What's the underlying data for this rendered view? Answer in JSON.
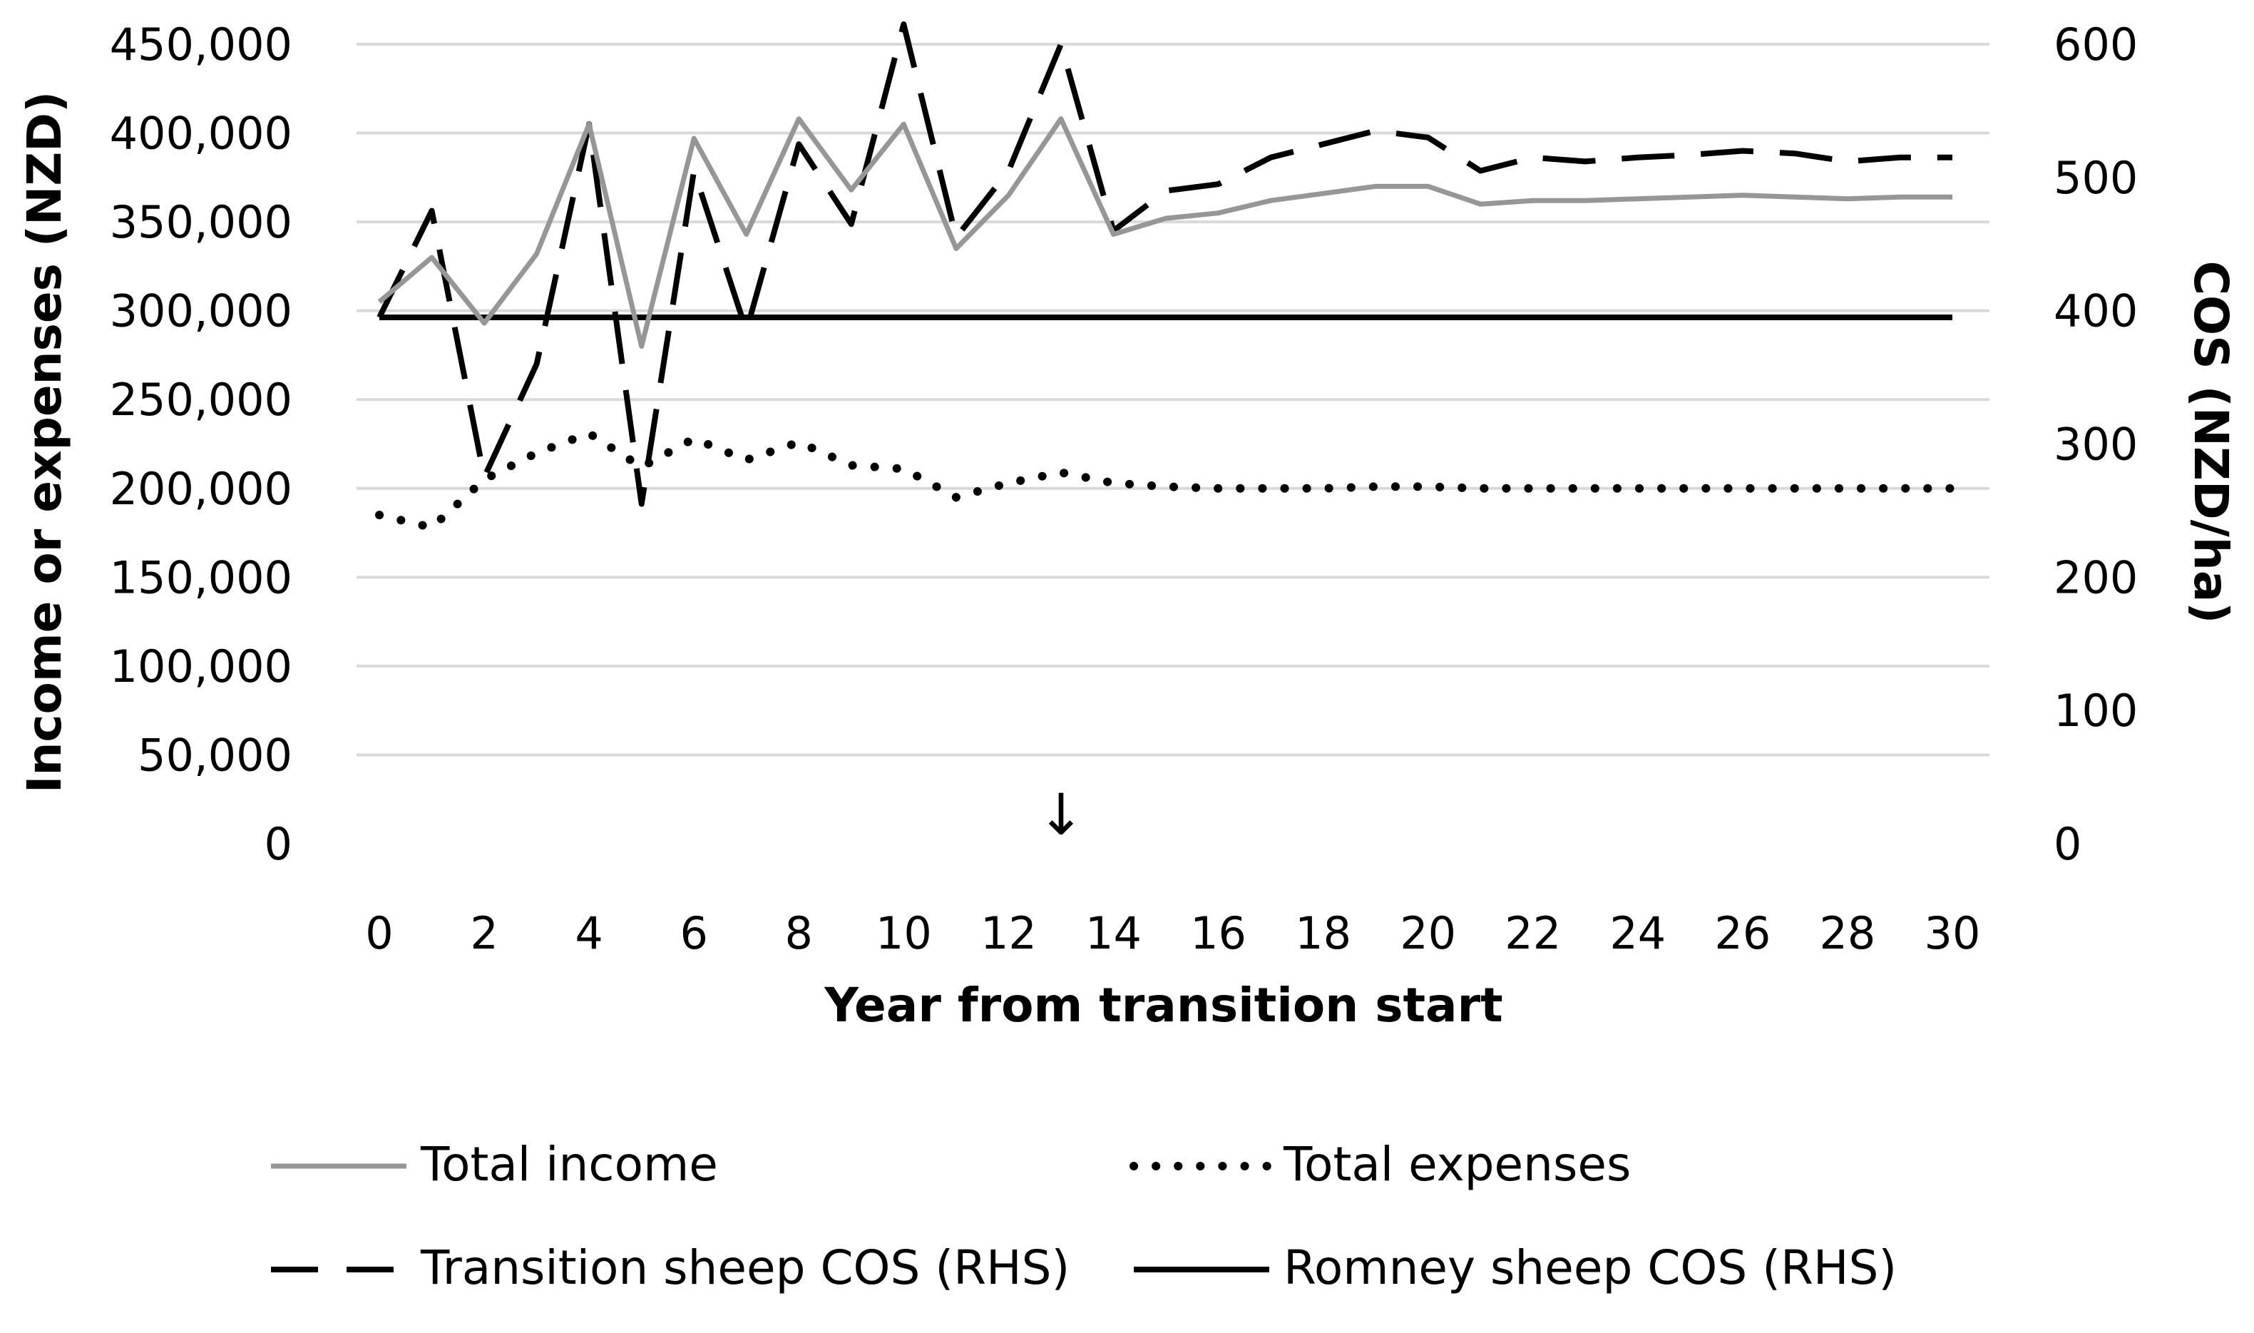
{
  "chart_data": {
    "type": "line",
    "title": "",
    "xlabel": "Year from transition start",
    "ylabel": "Income or expenses (NZD)",
    "y2label": "COS (NZD/ha)",
    "xlim": [
      0,
      30
    ],
    "ylim": [
      0,
      450000
    ],
    "y2lim": [
      0,
      600
    ],
    "grid": true,
    "legend_position": "bottom",
    "x_ticks": [
      "0",
      "2",
      "4",
      "6",
      "8",
      "10",
      "12",
      "14",
      "16",
      "18",
      "20",
      "22",
      "24",
      "26",
      "28",
      "30"
    ],
    "y_ticks": [
      "0",
      "50,000",
      "100,000",
      "150,000",
      "200,000",
      "250,000",
      "300,000",
      "350,000",
      "400,000",
      "450,000"
    ],
    "y2_ticks": [
      "0",
      "100",
      "200",
      "300",
      "400",
      "500",
      "600"
    ],
    "x": [
      0,
      1,
      2,
      3,
      4,
      5,
      6,
      7,
      8,
      9,
      10,
      11,
      12,
      13,
      14,
      15,
      16,
      17,
      18,
      19,
      20,
      21,
      22,
      23,
      24,
      25,
      26,
      27,
      28,
      29,
      30
    ],
    "series": [
      {
        "name": "Total income",
        "axis": "left",
        "style": "solid",
        "color": "#969696",
        "values": [
          305000,
          330000,
          293000,
          332000,
          405000,
          280000,
          397000,
          343000,
          408000,
          368000,
          405000,
          335000,
          365000,
          408000,
          343000,
          352000,
          355000,
          362000,
          366000,
          370000,
          370000,
          360000,
          362000,
          362000,
          363000,
          364000,
          365000,
          364000,
          363000,
          364000,
          364000
        ]
      },
      {
        "name": "Total expenses",
        "axis": "left",
        "style": "dotted",
        "color": "#000000",
        "values": [
          185000,
          178000,
          205000,
          220000,
          231000,
          212000,
          228000,
          216000,
          226000,
          213000,
          211000,
          195000,
          203000,
          209000,
          203000,
          201000,
          200000,
          200000,
          200000,
          201000,
          201000,
          200000,
          200000,
          200000,
          200000,
          200000,
          200000,
          200000,
          200000,
          200000,
          200000
        ]
      },
      {
        "name": "Transition sheep COS (RHS)",
        "axis": "right",
        "style": "dashed",
        "color": "#000000",
        "values": [
          395,
          475,
          275,
          360,
          540,
          255,
          505,
          385,
          525,
          465,
          615,
          455,
          505,
          600,
          460,
          490,
          495,
          515,
          525,
          535,
          530,
          505,
          515,
          512,
          515,
          517,
          520,
          518,
          512,
          515,
          515
        ]
      },
      {
        "name": "Romney sheep COS (RHS)",
        "axis": "right",
        "style": "solid",
        "color": "#000000",
        "values": [
          395,
          395,
          395,
          395,
          395,
          395,
          395,
          395,
          395,
          395,
          395,
          395,
          395,
          395,
          395,
          395,
          395,
          395,
          395,
          395,
          395,
          395,
          395,
          395,
          395,
          395,
          395,
          395,
          395,
          395,
          395
        ]
      }
    ],
    "annotations": [
      {
        "text": "↓",
        "x": 13
      }
    ]
  }
}
